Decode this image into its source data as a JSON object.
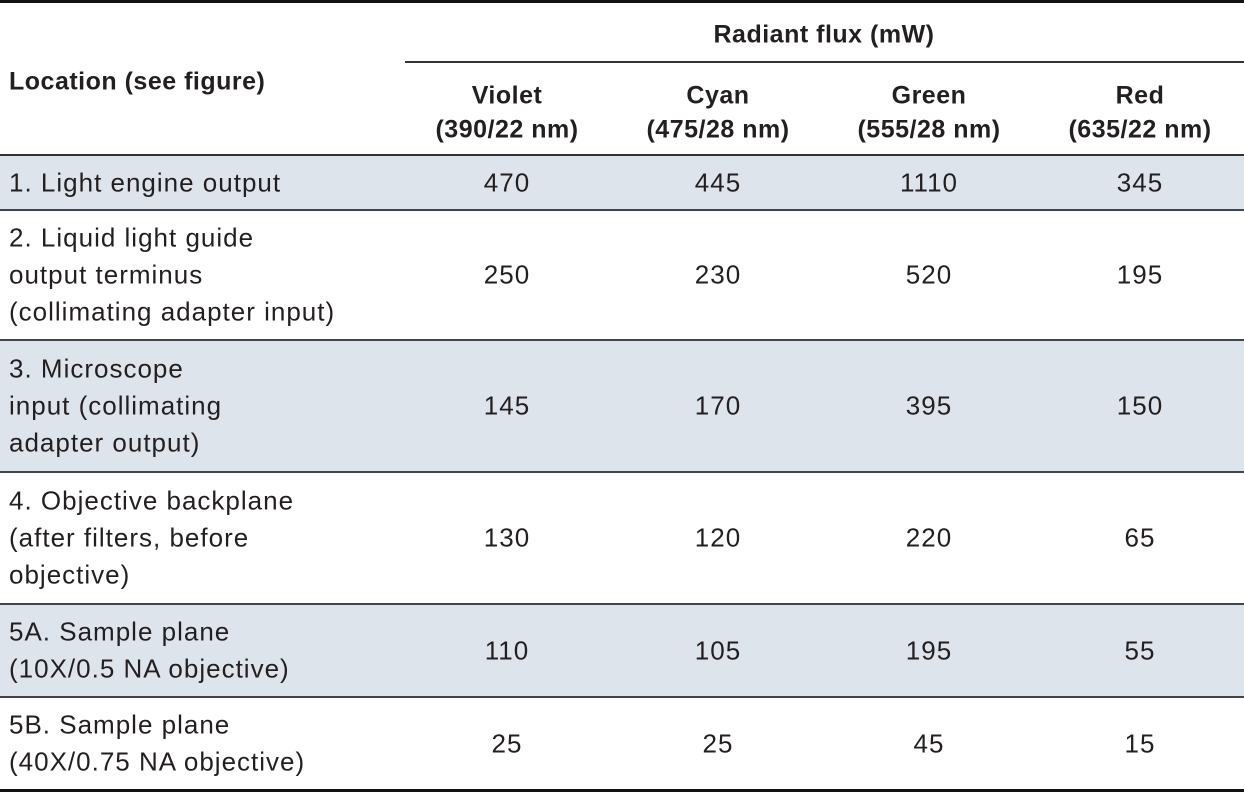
{
  "header": {
    "group_title": "Radiant flux (mW)",
    "location_title": "Location (see figure)",
    "columns": [
      {
        "name": "Violet",
        "band": "(390/22 nm)"
      },
      {
        "name": "Cyan",
        "band": "(475/28 nm)"
      },
      {
        "name": "Green",
        "band": "(555/28 nm)"
      },
      {
        "name": "Red",
        "band": "(635/22 nm)"
      }
    ]
  },
  "table": {
    "rows": [
      {
        "label": [
          "1. Light engine output"
        ],
        "values": [
          470,
          445,
          1110,
          345
        ]
      },
      {
        "label": [
          "2. Liquid light guide",
          "output terminus",
          "(collimating adapter input)"
        ],
        "values": [
          250,
          230,
          520,
          195
        ]
      },
      {
        "label": [
          "3. Microscope",
          "input (collimating",
          "adapter output)"
        ],
        "values": [
          145,
          170,
          395,
          150
        ]
      },
      {
        "label": [
          "4. Objective backplane",
          "(after filters, before",
          "objective)"
        ],
        "values": [
          130,
          120,
          220,
          65
        ]
      },
      {
        "label": [
          "5A. Sample plane",
          "(10X/0.5 NA objective)"
        ],
        "values": [
          110,
          105,
          195,
          55
        ]
      },
      {
        "label": [
          "5B. Sample plane",
          "(40X/0.75 NA objective)"
        ],
        "values": [
          25,
          25,
          45,
          15
        ]
      }
    ]
  }
}
